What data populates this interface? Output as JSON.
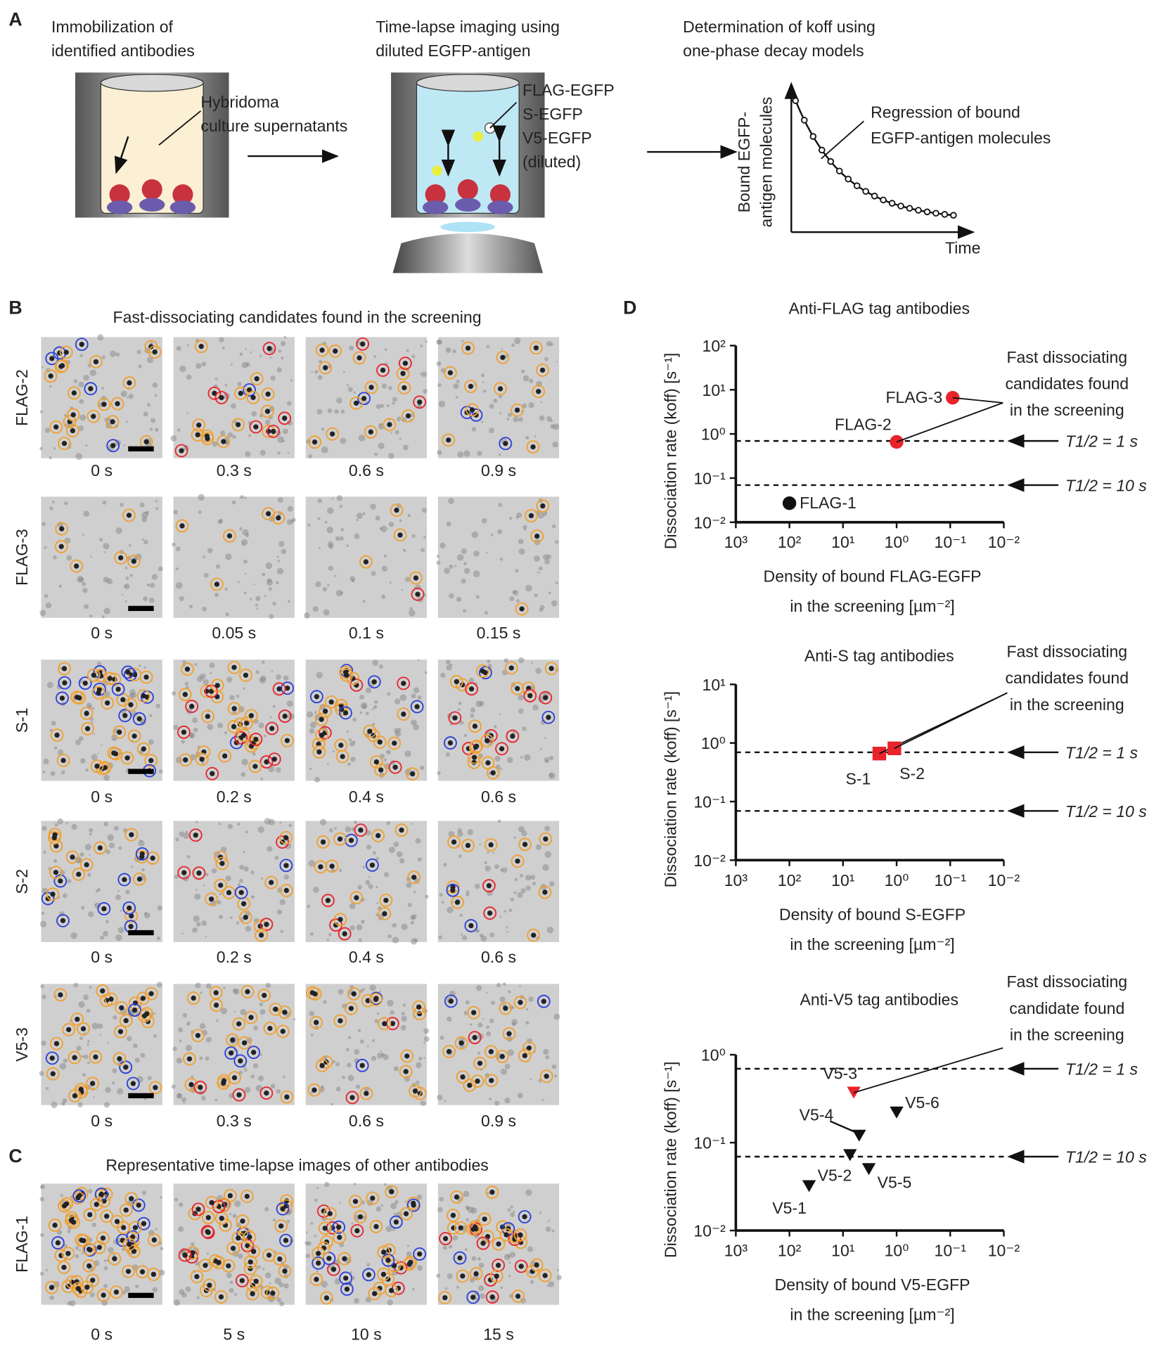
{
  "panels": {
    "a": {
      "label": "A",
      "step1": [
        "Immobilization of",
        "identified antibodies"
      ],
      "label1": [
        "Hybridoma",
        "culture supernatants"
      ],
      "step2": [
        "Time-lapse imaging using",
        "diluted EGFP-antigen"
      ],
      "label2": [
        "FLAG-EGFP",
        "S-EGFP",
        "V5-EGFP",
        "(diluted)"
      ],
      "step3": [
        "Determination of koff using",
        "one-phase decay models"
      ],
      "ylabel": [
        "Bound EGFP-",
        "antigen molecules"
      ],
      "xlabel": "Time",
      "annotation": [
        "Regression of bound",
        "EGFP-antigen molecules"
      ]
    },
    "b": {
      "label": "B",
      "title": "Fast-dissociating candidates found in the screening",
      "rows": [
        {
          "label": "FLAG-2",
          "times": [
            "0 s",
            "0.3 s",
            "0.6 s",
            "0.9 s"
          ]
        },
        {
          "label": "FLAG-3",
          "times": [
            "0 s",
            "0.05 s",
            "0.1 s",
            "0.15 s"
          ]
        },
        {
          "label": "S-1",
          "times": [
            "0 s",
            "0.2 s",
            "0.4 s",
            "0.6 s"
          ]
        },
        {
          "label": "S-2",
          "times": [
            "0 s",
            "0.2 s",
            "0.4 s",
            "0.6 s"
          ]
        },
        {
          "label": "V5-3",
          "times": [
            "0 s",
            "0.3 s",
            "0.6 s",
            "0.9 s"
          ]
        }
      ]
    },
    "c": {
      "label": "C",
      "title": "Representative time-lapse images of other antibodies",
      "rows": [
        {
          "label": "FLAG-1",
          "times": [
            "0 s",
            "5 s",
            "10 s",
            "15 s"
          ]
        }
      ]
    },
    "d": {
      "label": "D"
    }
  },
  "chart_data": [
    {
      "type": "scatter",
      "title": "Anti-FLAG tag antibodies",
      "marker": "circle",
      "ylabel": "Dissociation rate (koff) [s⁻¹]",
      "xlabel": [
        "Density of bound FLAG-EGFP",
        "in the screening [µm⁻²]"
      ],
      "xscale": "log",
      "yscale": "log",
      "xlim": [
        1000,
        0.01
      ],
      "ylim": [
        0.01,
        100
      ],
      "xticks": [
        {
          "value": 1000,
          "label": "10³"
        },
        {
          "value": 100,
          "label": "10²"
        },
        {
          "value": 10,
          "label": "10¹"
        },
        {
          "value": 1,
          "label": "10⁰"
        },
        {
          "value": 0.1,
          "label": "10⁻¹"
        },
        {
          "value": 0.01,
          "label": "10⁻²"
        }
      ],
      "yticks": [
        {
          "value": 0.01,
          "label": "10⁻²"
        },
        {
          "value": 0.1,
          "label": "10⁻¹"
        },
        {
          "value": 1,
          "label": "10⁰"
        },
        {
          "value": 10,
          "label": "10¹"
        },
        {
          "value": 100,
          "label": "10²"
        }
      ],
      "reference_lines": [
        {
          "value": 0.693,
          "label": "T1/2 = 1 s"
        },
        {
          "value": 0.0693,
          "label": "T1/2 = 10 s"
        }
      ],
      "annotation": [
        "Fast dissociating",
        "candidates found",
        "in the screening"
      ],
      "series": [
        {
          "name": "FLAG-1",
          "color": "#111111",
          "x": [
            100
          ],
          "values": [
            0.027
          ]
        },
        {
          "name": "FLAG-2",
          "color": "#e8232b",
          "x": [
            1.0
          ],
          "values": [
            0.66
          ]
        },
        {
          "name": "FLAG-3",
          "color": "#e8232b",
          "x": [
            0.09
          ],
          "values": [
            6.6
          ]
        }
      ]
    },
    {
      "type": "scatter",
      "title": "Anti-S tag antibodies",
      "marker": "square",
      "ylabel": "Dissociation rate (koff) [s⁻¹]",
      "xlabel": [
        "Density of bound S-EGFP",
        "in the screening [µm⁻²]"
      ],
      "xscale": "log",
      "yscale": "log",
      "xlim": [
        1000,
        0.01
      ],
      "ylim": [
        0.01,
        10
      ],
      "xticks": [
        {
          "value": 1000,
          "label": "10³"
        },
        {
          "value": 100,
          "label": "10²"
        },
        {
          "value": 10,
          "label": "10¹"
        },
        {
          "value": 1,
          "label": "10⁰"
        },
        {
          "value": 0.1,
          "label": "10⁻¹"
        },
        {
          "value": 0.01,
          "label": "10⁻²"
        }
      ],
      "yticks": [
        {
          "value": 0.01,
          "label": "10⁻²"
        },
        {
          "value": 0.1,
          "label": "10⁻¹"
        },
        {
          "value": 1,
          "label": "10⁰"
        },
        {
          "value": 10,
          "label": "10¹"
        }
      ],
      "reference_lines": [
        {
          "value": 0.693,
          "label": "T1/2 = 1 s"
        },
        {
          "value": 0.0693,
          "label": "T1/2 = 10 s"
        }
      ],
      "annotation": [
        "Fast dissociating",
        "candidates found",
        "in the screening"
      ],
      "series": [
        {
          "name": "S-1",
          "color": "#e8232b",
          "x": [
            2.1
          ],
          "values": [
            0.66
          ]
        },
        {
          "name": "S-2",
          "color": "#e8232b",
          "x": [
            1.1
          ],
          "values": [
            0.81
          ]
        }
      ]
    },
    {
      "type": "scatter",
      "title": "Anti-V5 tag antibodies",
      "marker": "triangle-down",
      "ylabel": "Dissociation rate (koff) [s⁻¹]",
      "xlabel": [
        "Density of bound V5-EGFP",
        "in the screening [µm⁻²]"
      ],
      "xscale": "log",
      "yscale": "log",
      "xlim": [
        1000,
        0.01
      ],
      "ylim": [
        0.01,
        1
      ],
      "xticks": [
        {
          "value": 1000,
          "label": "10³"
        },
        {
          "value": 100,
          "label": "10²"
        },
        {
          "value": 10,
          "label": "10¹"
        },
        {
          "value": 1,
          "label": "10⁰"
        },
        {
          "value": 0.1,
          "label": "10⁻¹"
        },
        {
          "value": 0.01,
          "label": "10⁻²"
        }
      ],
      "yticks": [
        {
          "value": 0.01,
          "label": "10⁻²"
        },
        {
          "value": 0.1,
          "label": "10⁻¹"
        },
        {
          "value": 1,
          "label": "10⁰"
        }
      ],
      "reference_lines": [
        {
          "value": 0.693,
          "label": "T1/2 = 1 s"
        },
        {
          "value": 0.0693,
          "label": "T1/2 = 10 s"
        }
      ],
      "annotation": [
        "Fast dissociating",
        "candidate found",
        "in the screening"
      ],
      "series": [
        {
          "name": "V5-1",
          "color": "#111111",
          "x": [
            43
          ],
          "values": [
            0.032
          ]
        },
        {
          "name": "V5-2",
          "color": "#111111",
          "x": [
            7.4
          ],
          "values": [
            0.072
          ]
        },
        {
          "name": "V5-3",
          "color": "#e8232b",
          "x": [
            6.3
          ],
          "values": [
            0.37
          ]
        },
        {
          "name": "V5-4",
          "color": "#111111",
          "x": [
            5.0
          ],
          "values": [
            0.12
          ]
        },
        {
          "name": "V5-5",
          "color": "#111111",
          "x": [
            3.3
          ],
          "values": [
            0.05
          ]
        },
        {
          "name": "V5-6",
          "color": "#111111",
          "x": [
            1.0
          ],
          "values": [
            0.22
          ]
        }
      ]
    }
  ]
}
